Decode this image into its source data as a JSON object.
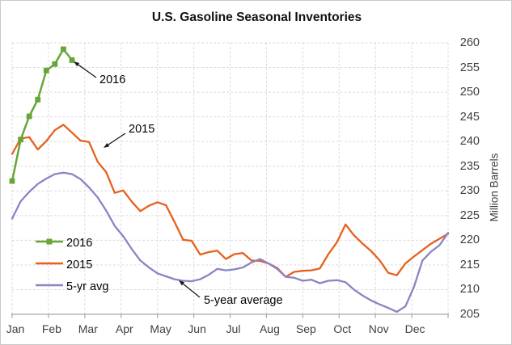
{
  "chart": {
    "title": "U.S. Gasoline Seasonal Inventories",
    "y_axis_title": "Million Barrels"
  },
  "annotations": [
    {
      "text": "2016"
    },
    {
      "text": "2015"
    },
    {
      "text": "5-year average"
    }
  ],
  "chart_data": {
    "type": "line",
    "title": "U.S. Gasoline Seasonal Inventories",
    "ylabel": "Million Barrels",
    "ylim": [
      205,
      260
    ],
    "y_ticks": [
      205,
      210,
      215,
      220,
      225,
      230,
      235,
      240,
      245,
      250,
      255,
      260
    ],
    "categories": [
      "Jan",
      "Feb",
      "Mar",
      "Apr",
      "May",
      "Jun",
      "Jul",
      "Aug",
      "Sep",
      "Oct",
      "Nov",
      "Dec"
    ],
    "x_unit": "weekly points, 52 weeks spanning Jan-Dec",
    "grid": true,
    "grid_style": "dashed",
    "legend_position": "inside left",
    "colors": {
      "grid": "#D9D9D9",
      "axis_line": "#A6A6A6",
      "tick_text": "#404040"
    },
    "series": [
      {
        "name": "2016",
        "color": "#66A637",
        "marker": "square",
        "values": [
          232.0,
          240.4,
          245.1,
          248.5,
          254.4,
          255.7,
          258.7,
          256.5
        ]
      },
      {
        "name": "2015",
        "color": "#E7601E",
        "marker": "none",
        "values": [
          237.5,
          240.6,
          240.9,
          238.4,
          240.1,
          242.3,
          243.4,
          241.8,
          240.2,
          239.9,
          235.9,
          233.8,
          229.6,
          230.1,
          227.8,
          225.9,
          227.0,
          227.7,
          227.1,
          223.7,
          220.1,
          219.9,
          217.1,
          217.6,
          217.9,
          216.2,
          217.2,
          217.4,
          215.9,
          215.8,
          215.3,
          214.4,
          212.6,
          213.6,
          213.8,
          213.9,
          214.3,
          217.2,
          219.6,
          223.2,
          221.0,
          219.3,
          217.8,
          215.9,
          213.4,
          212.9,
          215.3,
          216.7,
          218.0,
          219.3,
          220.3,
          221.3
        ]
      },
      {
        "name": "5-yr avg",
        "color": "#8A84C4",
        "marker": "none",
        "values": [
          224.4,
          227.9,
          229.8,
          231.4,
          232.5,
          233.4,
          233.7,
          233.4,
          232.4,
          230.7,
          228.7,
          226.0,
          222.9,
          220.8,
          218.2,
          215.9,
          214.5,
          213.3,
          212.7,
          212.1,
          211.8,
          211.7,
          212.1,
          213.0,
          214.2,
          213.9,
          214.1,
          214.5,
          215.5,
          216.2,
          215.3,
          214.2,
          212.6,
          212.4,
          211.8,
          212.0,
          211.3,
          211.8,
          211.9,
          211.5,
          210.0,
          208.8,
          207.8,
          207.0,
          206.3,
          205.5,
          206.6,
          210.5,
          215.9,
          217.7,
          219.0,
          221.5
        ]
      }
    ]
  }
}
